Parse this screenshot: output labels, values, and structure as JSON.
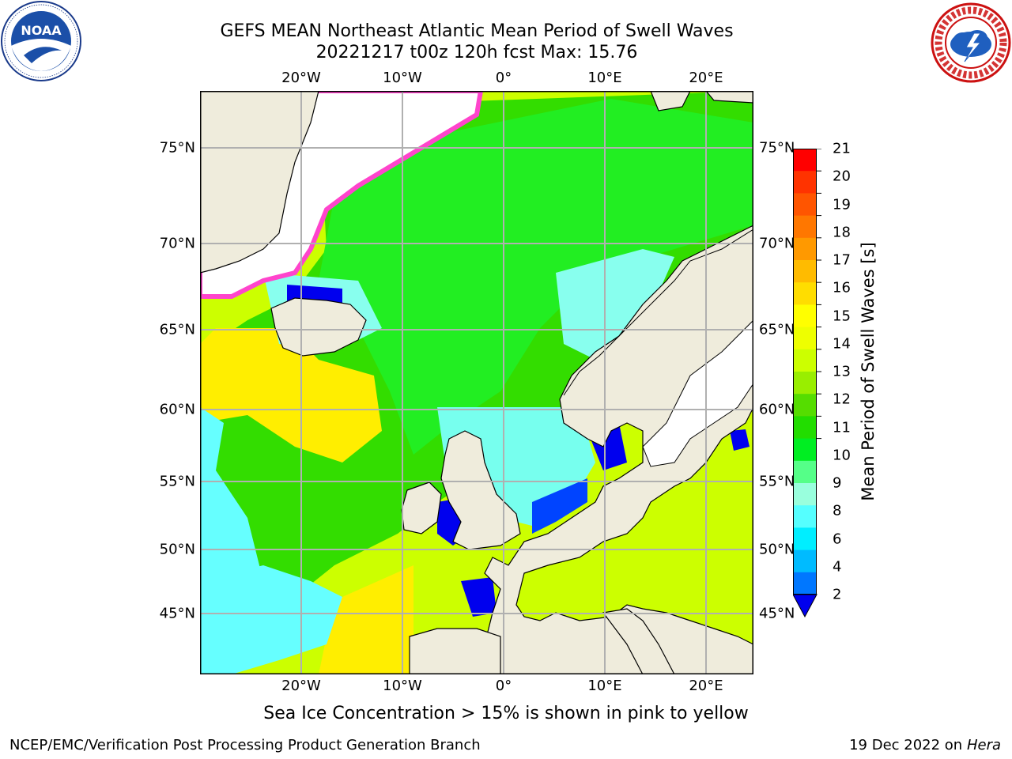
{
  "title": {
    "line1": "GEFS MEAN Northeast Atlantic Mean Period of Swell Waves",
    "line2": "20221217 t00z 120h fcst   Max: 15.76"
  },
  "logos": {
    "left": "noaa-logo",
    "right": "nws-logo"
  },
  "map": {
    "lon_labels": [
      "20°W",
      "10°W",
      "0°",
      "10°E",
      "20°E"
    ],
    "lat_labels": [
      "75°N",
      "70°N",
      "65°N",
      "60°N",
      "55°N",
      "50°N",
      "45°N"
    ],
    "colors": {
      "land": "#efecdc",
      "coast": "#000000",
      "grid": "#b0b0b0",
      "ice": "#ffffff"
    }
  },
  "colorbar": {
    "label": "Mean Period of Swell Waves [s]",
    "ticks": [
      "21",
      "20",
      "19",
      "18",
      "17",
      "16",
      "15",
      "14",
      "13",
      "12",
      "11",
      "10",
      "9",
      "8",
      "6",
      "4",
      "2"
    ],
    "colors": [
      "#ff0000",
      "#ff3300",
      "#ff5500",
      "#ff7700",
      "#ff9900",
      "#ffbb00",
      "#ffdd00",
      "#ffff00",
      "#eeff00",
      "#ccff00",
      "#99ee00",
      "#55dd00",
      "#22dd00",
      "#00ee22",
      "#55ff88",
      "#99ffdd",
      "#55ffff",
      "#00eeff",
      "#00bbff",
      "#0077ff"
    ],
    "under_color": "#0000ee"
  },
  "footer": {
    "note": "Sea Ice Concentration > 15% is shown in pink to yellow",
    "left": "NCEP/EMC/Verification Post Processing Product Generation Branch",
    "right_date": "19 Dec 2022 on",
    "right_host": "Hera"
  }
}
